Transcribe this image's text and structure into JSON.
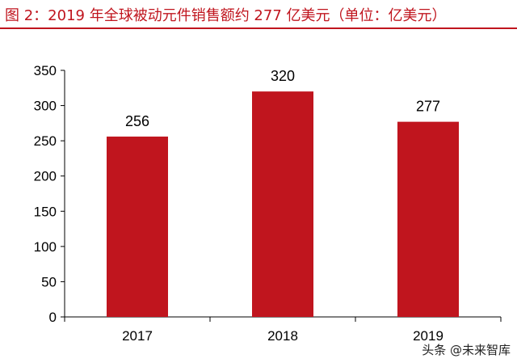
{
  "header": {
    "title": "图 2：2019 年全球被动元件销售额约 277 亿美元（单位：亿美元）"
  },
  "watermark": {
    "text": "头条 @未来智库"
  },
  "colors": {
    "bar": "#c0151e",
    "title": "#c0151e",
    "axis": "#000000"
  },
  "chart_data": {
    "type": "bar",
    "categories": [
      "2017",
      "2018",
      "2019"
    ],
    "values": [
      256,
      320,
      277
    ],
    "data_labels": [
      "256",
      "320",
      "277"
    ],
    "title": "",
    "xlabel": "",
    "ylabel": "",
    "ylim": [
      0,
      350
    ],
    "yticks": [
      0,
      50,
      100,
      150,
      200,
      250,
      300,
      350
    ],
    "grid": false,
    "legend": "none"
  }
}
